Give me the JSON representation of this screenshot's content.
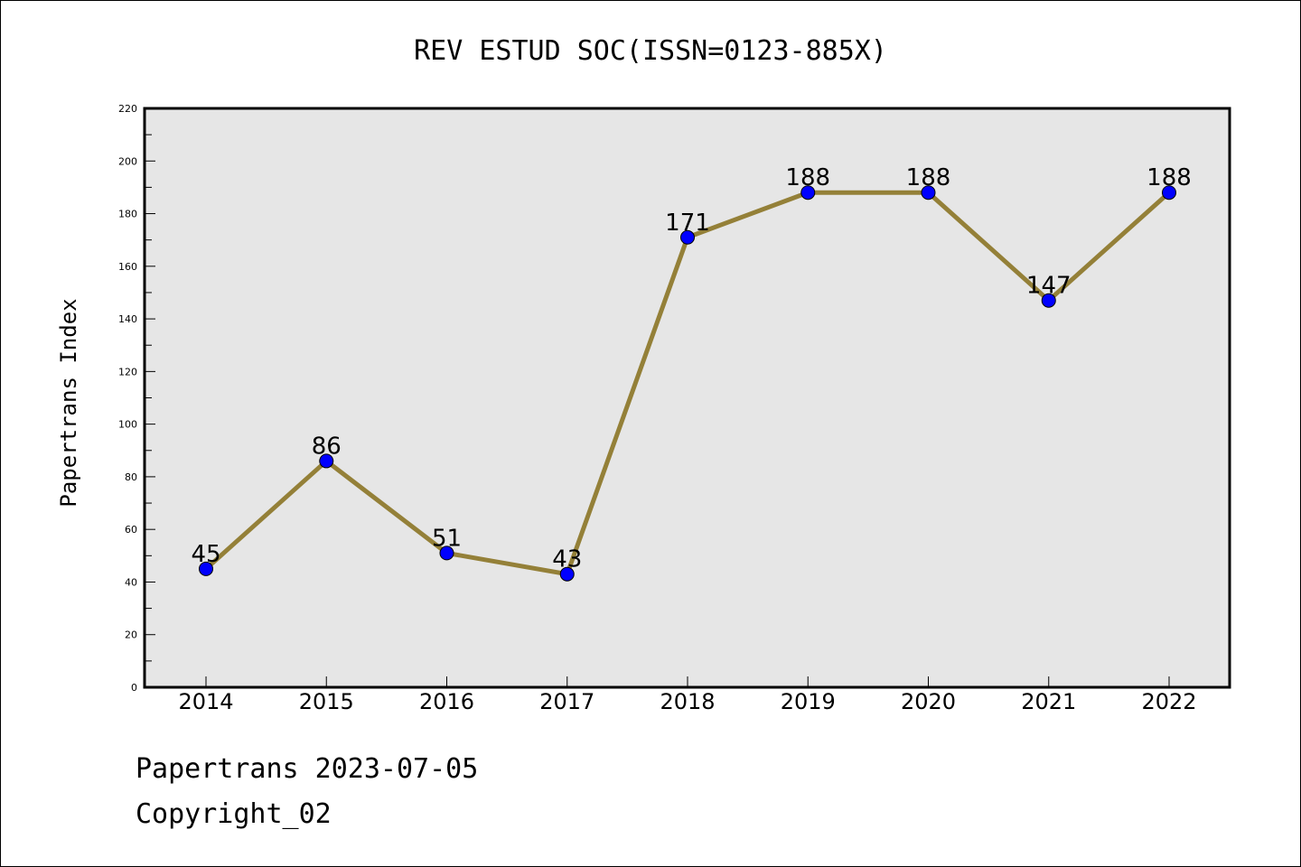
{
  "chart_data": {
    "type": "line",
    "title": "REV ESTUD SOC(ISSN=0123-885X)",
    "xlabel": "",
    "ylabel": "Papertrans Index",
    "categories": [
      "2014",
      "2015",
      "2016",
      "2017",
      "2018",
      "2019",
      "2020",
      "2021",
      "2022"
    ],
    "values": [
      45,
      86,
      51,
      43,
      171,
      188,
      188,
      147,
      188
    ],
    "data_labels": [
      "45",
      "86",
      "51",
      "43",
      "171",
      "188",
      "188",
      "147",
      "188"
    ],
    "ylim": [
      0,
      220
    ],
    "yticks": [
      "0",
      "20",
      "40",
      "60",
      "80",
      "100",
      "120",
      "140",
      "160",
      "180",
      "200",
      "220"
    ],
    "grid": false,
    "colors": {
      "line": "#948038",
      "marker": "#0000ff",
      "plot_background": "#e6e6e6",
      "axes": "#000000"
    }
  },
  "footer": {
    "line1": "Papertrans 2023-07-05",
    "line2": "Copyright_02"
  }
}
